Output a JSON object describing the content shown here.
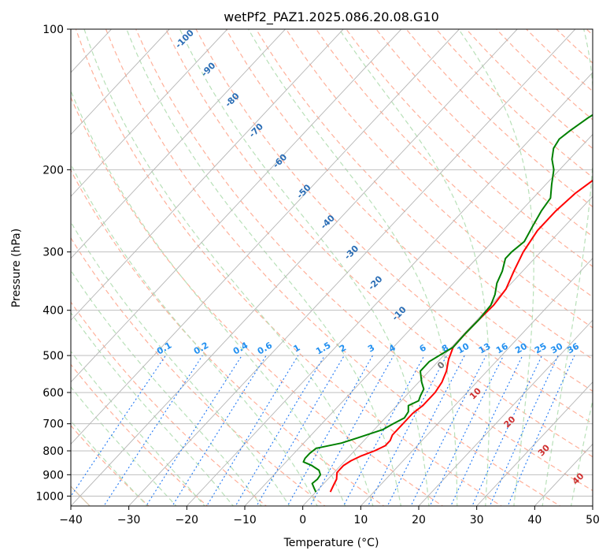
{
  "chart_data": {
    "type": "line",
    "title": "wetPf2_PAZ1.2025.086.20.08.G10",
    "xlabel": "Temperature (°C)",
    "ylabel": "Pressure (hPa)",
    "xlim": [
      -40,
      50
    ],
    "ylim": [
      1050,
      100
    ],
    "y_scale": "log",
    "grid": true,
    "x_ticks": [
      -40,
      -30,
      -20,
      -10,
      0,
      10,
      20,
      30,
      40,
      50
    ],
    "x_tick_labels": [
      "−40",
      "−30",
      "−20",
      "−10",
      "0",
      "10",
      "20",
      "30",
      "40",
      "50"
    ],
    "y_ticks": [
      1000,
      900,
      800,
      700,
      600,
      500,
      400,
      300,
      200,
      100
    ],
    "y_tick_labels": [
      "1000",
      "900",
      "800",
      "700",
      "600",
      "500",
      "400",
      "300",
      "200",
      "100"
    ],
    "series": [
      {
        "color": "#ff0000",
        "points": [
          {
            "p": 980,
            "t": 2.5
          },
          {
            "p": 950,
            "t": 2.0
          },
          {
            "p": 920,
            "t": 1.5
          },
          {
            "p": 890,
            "t": 0.5
          },
          {
            "p": 860,
            "t": 0.5
          },
          {
            "p": 840,
            "t": 1.0
          },
          {
            "p": 820,
            "t": 2.0
          },
          {
            "p": 800,
            "t": 3.5
          },
          {
            "p": 780,
            "t": 4.5
          },
          {
            "p": 760,
            "t": 4.5
          },
          {
            "p": 740,
            "t": 4.0
          },
          {
            "p": 710,
            "t": 4.0
          },
          {
            "p": 690,
            "t": 4.0
          },
          {
            "p": 665,
            "t": 4.0
          },
          {
            "p": 640,
            "t": 4.5
          },
          {
            "p": 600,
            "t": 4.5
          },
          {
            "p": 570,
            "t": 4.0
          },
          {
            "p": 540,
            "t": 3.0
          },
          {
            "p": 510,
            "t": 1.5
          },
          {
            "p": 480,
            "t": 0.3
          },
          {
            "p": 450,
            "t": 0.2
          },
          {
            "p": 420,
            "t": 0.3
          },
          {
            "p": 390,
            "t": 0.5
          },
          {
            "p": 360,
            "t": 0.0
          },
          {
            "p": 330,
            "t": -1.5
          },
          {
            "p": 300,
            "t": -3.0
          },
          {
            "p": 270,
            "t": -4.0
          },
          {
            "p": 245,
            "t": -4.0
          },
          {
            "p": 225,
            "t": -3.5
          },
          {
            "p": 210,
            "t": -2.5
          },
          {
            "p": 200,
            "t": -1.0
          },
          {
            "p": 185,
            "t": 2.5
          },
          {
            "p": 170,
            "t": 7.0
          },
          {
            "p": 160,
            "t": 8.5
          },
          {
            "p": 150,
            "t": 9.5
          },
          {
            "p": 140,
            "t": 11.0
          },
          {
            "p": 130,
            "t": 13.0
          },
          {
            "p": 120,
            "t": 15.5
          },
          {
            "p": 110,
            "t": 18.0
          },
          {
            "p": 100,
            "t": 20.0
          }
        ]
      },
      {
        "color": "#008000",
        "points": [
          {
            "p": 980,
            "t": 0.0
          },
          {
            "p": 960,
            "t": -1.0
          },
          {
            "p": 940,
            "t": -2.0
          },
          {
            "p": 920,
            "t": -1.8
          },
          {
            "p": 900,
            "t": -2.0
          },
          {
            "p": 880,
            "t": -3.0
          },
          {
            "p": 860,
            "t": -5.0
          },
          {
            "p": 845,
            "t": -7.0
          },
          {
            "p": 830,
            "t": -7.3
          },
          {
            "p": 810,
            "t": -7.3
          },
          {
            "p": 790,
            "t": -7.0
          },
          {
            "p": 770,
            "t": -3.5
          },
          {
            "p": 750,
            "t": -1.5
          },
          {
            "p": 720,
            "t": 1.5
          },
          {
            "p": 700,
            "t": 2.3
          },
          {
            "p": 680,
            "t": 3.3
          },
          {
            "p": 660,
            "t": 3.0
          },
          {
            "p": 640,
            "t": 2.0
          },
          {
            "p": 625,
            "t": 3.0
          },
          {
            "p": 610,
            "t": 2.5
          },
          {
            "p": 590,
            "t": 2.0
          },
          {
            "p": 570,
            "t": 0.5
          },
          {
            "p": 540,
            "t": -1.5
          },
          {
            "p": 515,
            "t": -1.5
          },
          {
            "p": 495,
            "t": -0.5
          },
          {
            "p": 480,
            "t": 0.3
          },
          {
            "p": 450,
            "t": 0.2
          },
          {
            "p": 420,
            "t": 0.3
          },
          {
            "p": 390,
            "t": 0.0
          },
          {
            "p": 370,
            "t": -1.0
          },
          {
            "p": 350,
            "t": -2.5
          },
          {
            "p": 330,
            "t": -3.5
          },
          {
            "p": 310,
            "t": -5.0
          },
          {
            "p": 300,
            "t": -5.0
          },
          {
            "p": 285,
            "t": -4.5
          },
          {
            "p": 265,
            "t": -5.5
          },
          {
            "p": 245,
            "t": -6.5
          },
          {
            "p": 230,
            "t": -7.0
          },
          {
            "p": 215,
            "t": -9.0
          },
          {
            "p": 200,
            "t": -11.0
          },
          {
            "p": 190,
            "t": -13.0
          },
          {
            "p": 180,
            "t": -14.5
          },
          {
            "p": 172,
            "t": -15.0
          },
          {
            "p": 165,
            "t": -14.5
          },
          {
            "p": 155,
            "t": -13.5
          },
          {
            "p": 145,
            "t": -12.0
          },
          {
            "p": 135,
            "t": -10.5
          },
          {
            "p": 125,
            "t": -9.5
          },
          {
            "p": 115,
            "t": -8.0
          },
          {
            "p": 105,
            "t": -6.0
          },
          {
            "p": 100,
            "t": -4.5
          }
        ]
      }
    ],
    "mixing_ratio_labels": [
      "0.1",
      "0.2",
      "0.4",
      "0.6",
      "1",
      "1.5",
      "2",
      "3",
      "4",
      "6",
      "8",
      "10",
      "13",
      "16",
      "20",
      "25",
      "30",
      "36"
    ],
    "moist_adiabat_labels": [
      "0",
      "10",
      "20",
      "30",
      "40"
    ],
    "dry_adiabat_labels": [
      "-100",
      "-90",
      "-80",
      "-70",
      "-60",
      "-50",
      "-40",
      "-30",
      "-20",
      "-10"
    ],
    "colors": {
      "isotherm": "#b5b5b5",
      "isobar": "#b5b5b5",
      "dry_adiabat": "#ffb09a",
      "moist_adiabat": "#b8e0b8",
      "mixing_ratio": "#1f77f4",
      "mixing_label": "#2390f0",
      "dry_label": "#2a6db5",
      "moist_label": "#d03030",
      "zero_label": "#707070",
      "ref_adiabat": "#d9c4a8"
    }
  }
}
